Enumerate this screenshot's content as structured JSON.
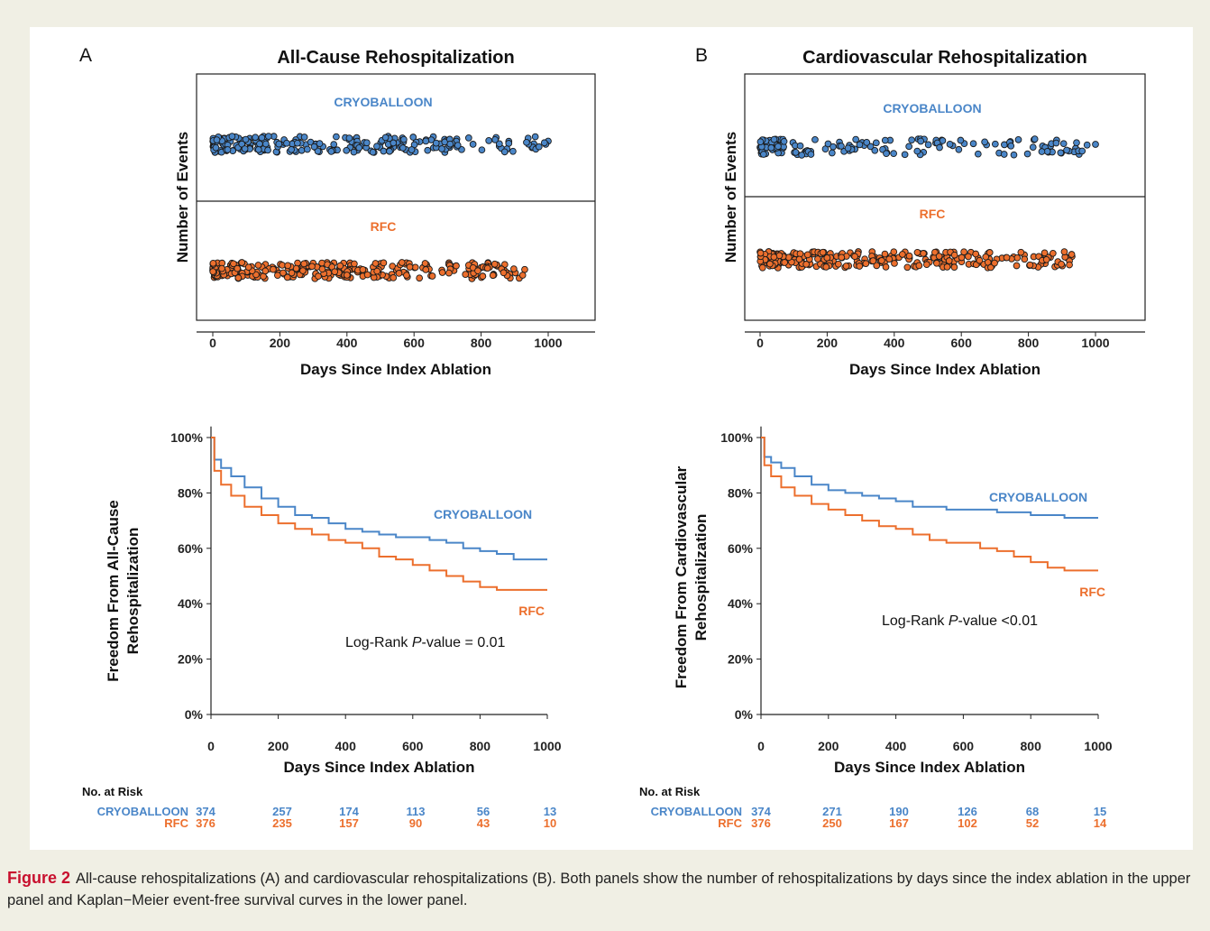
{
  "caption": {
    "label": "Figure 2",
    "text": "All-cause rehospitalizations (A) and cardiovascular rehospitalizations (B). Both panels show the number of rehospitalizations by days since the index ablation in the upper panel and Kaplan−Meier event-free survival curves in the lower panel."
  },
  "colors": {
    "cryoballoon": "#4a86c8",
    "rfc": "#ec6f2d"
  },
  "chart_data": [
    {
      "type": "scatter",
      "panel_label": "A",
      "title": "All-Cause Rehospitalization",
      "xlabel": "Days Since Index Ablation",
      "ylabel": "Number of Events",
      "xlim": [
        0,
        1000
      ],
      "xticks": [
        0,
        200,
        400,
        600,
        800,
        1000
      ],
      "series": [
        {
          "name": "CRYOBALLOON",
          "max_day": 1000
        },
        {
          "name": "RFC",
          "max_day": 930
        }
      ]
    },
    {
      "type": "scatter",
      "panel_label": "B",
      "title": "Cardiovascular Rehospitalization",
      "xlabel": "Days Since Index Ablation",
      "ylabel": "Number of Events",
      "xlim": [
        0,
        1000
      ],
      "xticks": [
        0,
        200,
        400,
        600,
        800,
        1000
      ],
      "series": [
        {
          "name": "CRYOBALLOON",
          "max_day": 1000
        },
        {
          "name": "RFC",
          "max_day": 930
        }
      ]
    },
    {
      "type": "line",
      "title": "",
      "xlabel": "Days Since Index Ablation",
      "ylabel": "Freedom From All-Cause Rehospitalization",
      "xlim": [
        0,
        1000
      ],
      "ylim": [
        0,
        100
      ],
      "xticks": [
        "0",
        "200",
        "400",
        "600",
        "800",
        "1000"
      ],
      "yticks": [
        "0%",
        "20%",
        "40%",
        "60%",
        "80%",
        "100%"
      ],
      "annotation": {
        "prefix": "Log-Rank ",
        "italic": "P",
        "suffix": "-value = 0.01"
      },
      "series": [
        {
          "name": "CRYOBALLOON",
          "x": [
            0,
            10,
            30,
            60,
            100,
            150,
            200,
            250,
            300,
            350,
            400,
            450,
            500,
            550,
            600,
            650,
            700,
            750,
            800,
            850,
            900,
            1000
          ],
          "y": [
            100,
            92,
            89,
            86,
            82,
            78,
            75,
            72,
            71,
            69,
            67,
            66,
            65,
            64,
            64,
            63,
            62,
            60,
            59,
            58,
            56,
            56
          ]
        },
        {
          "name": "RFC",
          "x": [
            0,
            10,
            30,
            60,
            100,
            150,
            200,
            250,
            300,
            350,
            400,
            450,
            500,
            550,
            600,
            650,
            700,
            750,
            800,
            850,
            900,
            1000
          ],
          "y": [
            100,
            88,
            83,
            79,
            75,
            72,
            69,
            67,
            65,
            63,
            62,
            60,
            57,
            56,
            54,
            52,
            50,
            48,
            46,
            45,
            45,
            45
          ]
        }
      ],
      "risk_table": {
        "header": "No. at Risk",
        "rows": [
          {
            "name": "CRYOBALLOON",
            "values": [
              "374",
              "257",
              "174",
              "113",
              "56",
              "13"
            ]
          },
          {
            "name": "RFC",
            "values": [
              "376",
              "235",
              "157",
              "90",
              "43",
              "10"
            ]
          }
        ]
      }
    },
    {
      "type": "line",
      "title": "",
      "xlabel": "Days Since Index Ablation",
      "ylabel": "Freedom From Cardiovascular Rehospitalization",
      "xlim": [
        0,
        1000
      ],
      "ylim": [
        0,
        100
      ],
      "xticks": [
        "0",
        "200",
        "400",
        "600",
        "800",
        "1000"
      ],
      "yticks": [
        "0%",
        "20%",
        "40%",
        "60%",
        "80%",
        "100%"
      ],
      "annotation": {
        "prefix": "Log-Rank ",
        "italic": "P",
        "suffix": "-value <0.01"
      },
      "series": [
        {
          "name": "CRYOBALLOON",
          "x": [
            0,
            10,
            30,
            60,
            100,
            150,
            200,
            250,
            300,
            350,
            400,
            450,
            500,
            550,
            600,
            650,
            700,
            750,
            800,
            850,
            900,
            1000
          ],
          "y": [
            100,
            93,
            91,
            89,
            86,
            83,
            81,
            80,
            79,
            78,
            77,
            75,
            75,
            74,
            74,
            74,
            73,
            73,
            72,
            72,
            71,
            71
          ]
        },
        {
          "name": "RFC",
          "x": [
            0,
            10,
            30,
            60,
            100,
            150,
            200,
            250,
            300,
            350,
            400,
            450,
            500,
            550,
            600,
            650,
            700,
            750,
            800,
            850,
            900,
            1000
          ],
          "y": [
            100,
            90,
            86,
            82,
            79,
            76,
            74,
            72,
            70,
            68,
            67,
            65,
            63,
            62,
            62,
            60,
            59,
            57,
            55,
            53,
            52,
            52
          ]
        }
      ],
      "risk_table": {
        "header": "No. at Risk",
        "rows": [
          {
            "name": "CRYOBALLOON",
            "values": [
              "374",
              "271",
              "190",
              "126",
              "68",
              "15"
            ]
          },
          {
            "name": "RFC",
            "values": [
              "376",
              "250",
              "167",
              "102",
              "52",
              "14"
            ]
          }
        ]
      }
    }
  ]
}
